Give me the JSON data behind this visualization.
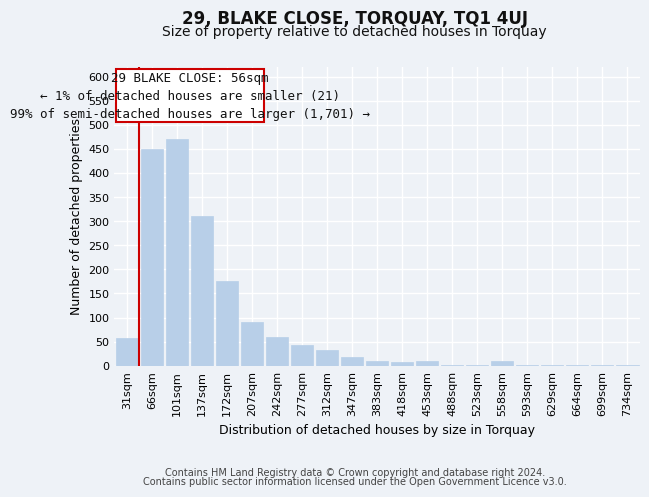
{
  "title": "29, BLAKE CLOSE, TORQUAY, TQ1 4UJ",
  "subtitle": "Size of property relative to detached houses in Torquay",
  "xlabel": "Distribution of detached houses by size in Torquay",
  "ylabel": "Number of detached properties",
  "categories": [
    "31sqm",
    "66sqm",
    "101sqm",
    "137sqm",
    "172sqm",
    "207sqm",
    "242sqm",
    "277sqm",
    "312sqm",
    "347sqm",
    "383sqm",
    "418sqm",
    "453sqm",
    "488sqm",
    "523sqm",
    "558sqm",
    "593sqm",
    "629sqm",
    "664sqm",
    "699sqm",
    "734sqm"
  ],
  "values": [
    57,
    450,
    470,
    310,
    175,
    90,
    60,
    43,
    33,
    17,
    10,
    7,
    10,
    2,
    2,
    10,
    2,
    2,
    2,
    1,
    2
  ],
  "bar_color": "#b8cfe8",
  "highlight_edge_color": "#cc0000",
  "annotation_line": "29 BLAKE CLOSE: 56sqm",
  "annotation_line2": "← 1% of detached houses are smaller (21)",
  "annotation_line3": "99% of semi-detached houses are larger (1,701) →",
  "ylim": [
    0,
    620
  ],
  "yticks": [
    0,
    50,
    100,
    150,
    200,
    250,
    300,
    350,
    400,
    450,
    500,
    550,
    600
  ],
  "footnote1": "Contains HM Land Registry data © Crown copyright and database right 2024.",
  "footnote2": "Contains public sector information licensed under the Open Government Licence v3.0.",
  "bg_color": "#eef2f7",
  "grid_color": "#ffffff",
  "title_fontsize": 12,
  "subtitle_fontsize": 10,
  "label_fontsize": 9,
  "tick_fontsize": 8,
  "annotation_fontsize": 9,
  "footnote_fontsize": 7
}
